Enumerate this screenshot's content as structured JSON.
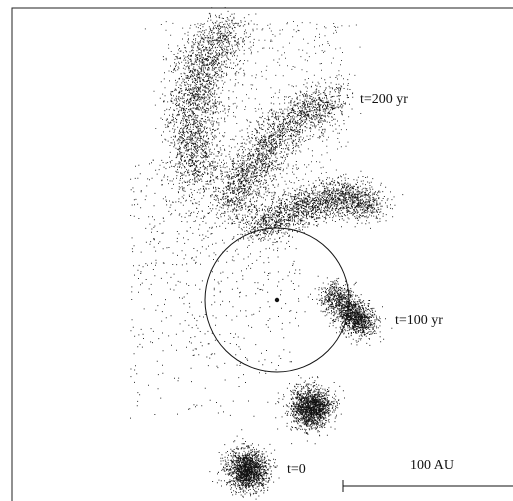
{
  "figure": {
    "labels": [
      "t=200 yr",
      "t=100 yr",
      "t=0"
    ],
    "scale_bar": {
      "label": "100 AU"
    }
  }
}
